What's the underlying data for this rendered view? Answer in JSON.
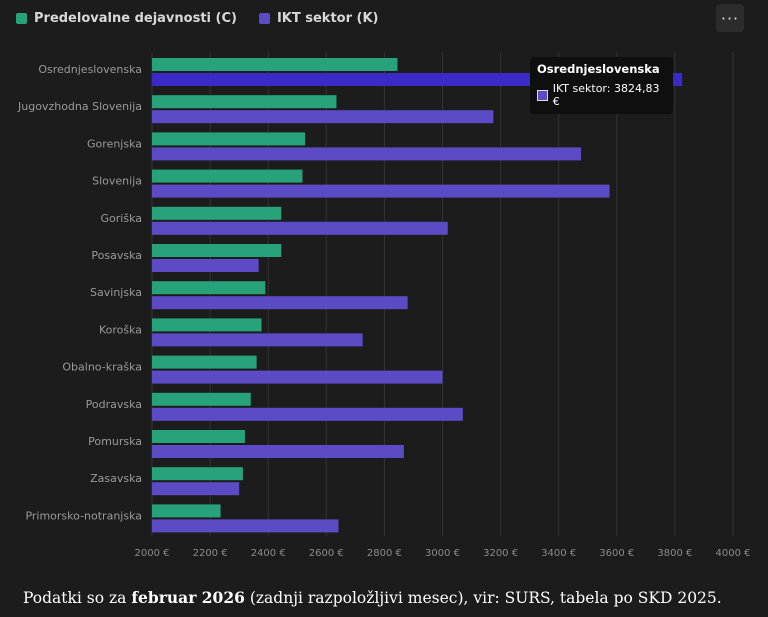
{
  "legend": [
    {
      "label": "Predelovalne dejavnosti (C)",
      "color": "#27a27a"
    },
    {
      "label": "IKT sektor (K)",
      "color": "#5b4bc4"
    }
  ],
  "menu_icon": "more-horizontal-icon",
  "menu_label": "···",
  "tooltip": {
    "title": "Osrednjeslovenska",
    "line": "IKT sektor: 3824,83 €"
  },
  "footer": {
    "prefix": "Podatki so za ",
    "bold": "februar 2026",
    "suffix": " (zadnji razpoložljivi mesec), vir: SURS, tabela po SKD 2025."
  },
  "chart_data": {
    "type": "bar",
    "orientation": "horizontal",
    "categories": [
      "Osrednjeslovenska",
      "Jugovzhodna Slovenija",
      "Gorenjska",
      "Slovenija",
      "Goriška",
      "Posavska",
      "Savinjska",
      "Koroška",
      "Obalno-kraška",
      "Podravska",
      "Pomurska",
      "Zasavska",
      "Primorsko-notranjska"
    ],
    "series": [
      {
        "name": "Predelovalne dejavnosti (C)",
        "color": "#27a27a",
        "values": [
          2845,
          2635,
          2527,
          2518,
          2445,
          2445,
          2390,
          2377,
          2360,
          2340,
          2320,
          2313,
          2236
        ]
      },
      {
        "name": "IKT sektor (K)",
        "color": "#5b4bc4",
        "values": [
          3824.83,
          3175,
          3477,
          3575,
          3018,
          2367,
          2880,
          2725,
          3000,
          3070,
          2867,
          2300,
          2642
        ]
      }
    ],
    "highlight": {
      "category": "Osrednjeslovenska",
      "series": "IKT sektor (K)",
      "color": "#3a2bc9"
    },
    "xlim": [
      2000,
      4000
    ],
    "xticks": [
      2000,
      2200,
      2400,
      2600,
      2800,
      3000,
      3200,
      3400,
      3600,
      3800,
      4000
    ],
    "tick_suffix": " €",
    "grid": true,
    "legend_position": "top-left"
  }
}
